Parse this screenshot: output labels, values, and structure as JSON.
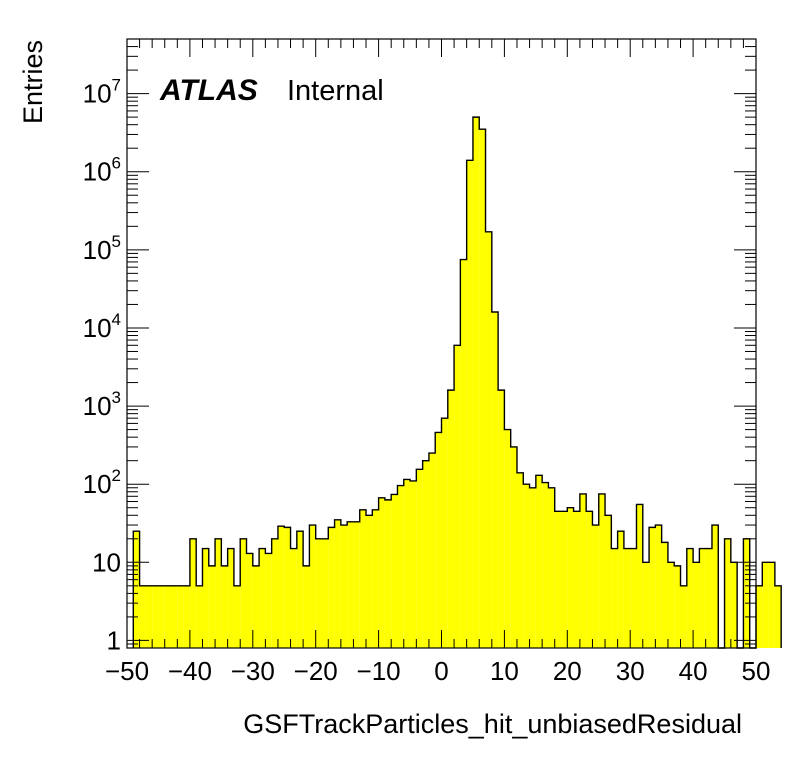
{
  "chart_data": {
    "type": "bar",
    "style": "step-histogram",
    "fill_color": "#ffff00",
    "line_color": "#000000",
    "xlabel": "GSFTrackParticles_hit_unbiasedResidual",
    "ylabel": "Entries",
    "label_main": "ATLAS",
    "label_sub": "Internal",
    "xlim": [
      -50,
      50
    ],
    "ylim": [
      0.8,
      50000000
    ],
    "y_log": true,
    "grid": false,
    "x_ticks": [
      -50,
      -40,
      -30,
      -20,
      -10,
      0,
      10,
      20,
      30,
      40,
      50
    ],
    "x_tick_labels": [
      "−50",
      "−40",
      "−30",
      "−20",
      "−10",
      "0",
      "10",
      "20",
      "30",
      "40",
      "50"
    ],
    "y_ticks": [
      1,
      10,
      100,
      1000,
      10000,
      100000,
      1000000,
      10000000
    ],
    "y_tick_labels": [
      {
        "base": "1",
        "exp": ""
      },
      {
        "base": "10",
        "exp": ""
      },
      {
        "base": "10",
        "exp": "2"
      },
      {
        "base": "10",
        "exp": "3"
      },
      {
        "base": "10",
        "exp": "4"
      },
      {
        "base": "10",
        "exp": "5"
      },
      {
        "base": "10",
        "exp": "6"
      },
      {
        "base": "10",
        "exp": "7"
      }
    ],
    "bin_width": 1,
    "x_start": -49,
    "values": [
      25,
      5,
      5,
      5,
      5,
      5,
      5,
      5,
      5,
      20,
      5,
      15,
      9,
      20,
      9,
      15,
      5,
      20,
      13,
      9,
      15,
      13,
      20,
      29,
      28,
      15,
      25,
      9,
      30,
      20,
      20,
      28,
      35,
      30,
      33,
      33,
      47,
      40,
      47,
      67,
      63,
      74,
      96,
      115,
      110,
      155,
      200,
      250,
      460,
      700,
      1600,
      6000,
      75000,
      1400000,
      5000000,
      3500000,
      170000,
      16000,
      1600,
      500,
      300,
      140,
      100,
      90,
      130,
      105,
      90,
      45,
      45,
      50,
      45,
      75,
      45,
      30,
      75,
      40,
      15,
      25,
      15,
      15,
      55,
      10,
      28,
      30,
      18,
      10,
      9,
      5,
      15,
      10,
      15,
      15,
      30,
      0.5,
      20,
      10,
      0.5,
      20,
      0.5,
      5,
      10,
      10,
      5
    ]
  }
}
